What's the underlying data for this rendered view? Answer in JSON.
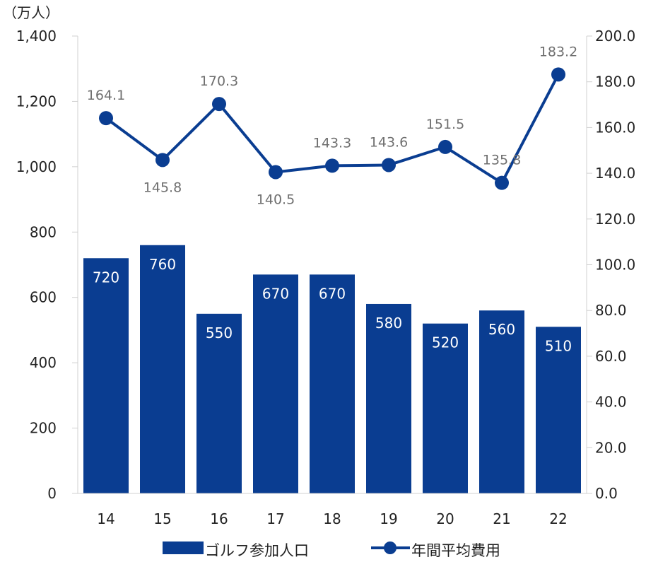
{
  "chart_data": {
    "type": "bar",
    "unit_label": "（万人）",
    "categories": [
      "14",
      "15",
      "16",
      "17",
      "18",
      "19",
      "20",
      "21",
      "22"
    ],
    "series": [
      {
        "name": "ゴルフ参加人口",
        "type": "bar",
        "axis": "left",
        "color": "#0a3d91",
        "values": [
          720,
          760,
          550,
          670,
          670,
          580,
          520,
          560,
          510
        ],
        "labels": [
          "720",
          "760",
          "550",
          "670",
          "670",
          "580",
          "520",
          "560",
          "510"
        ]
      },
      {
        "name": "年間平均費用",
        "type": "line",
        "axis": "right",
        "color": "#0a3d91",
        "values": [
          164.1,
          145.8,
          170.3,
          140.5,
          143.3,
          143.6,
          151.5,
          135.8,
          183.2
        ],
        "labels": [
          "164.1",
          "145.8",
          "170.3",
          "140.5",
          "143.3",
          "143.6",
          "151.5",
          "135.8",
          "183.2"
        ],
        "label_positions": [
          "above",
          "below",
          "above",
          "below",
          "above",
          "above",
          "above",
          "above",
          "above"
        ]
      }
    ],
    "y_left": {
      "min": 0,
      "max": 1400,
      "ticks": [
        0,
        200,
        400,
        600,
        800,
        1000,
        1200,
        1400
      ],
      "tick_labels": [
        "0",
        "200",
        "400",
        "600",
        "800",
        "1,000",
        "1,200",
        "1,400"
      ]
    },
    "y_right": {
      "min": 0,
      "max": 200,
      "ticks": [
        0,
        20,
        40,
        60,
        80,
        100,
        120,
        140,
        160,
        180,
        200
      ],
      "tick_labels": [
        "0.0",
        "20.0",
        "40.0",
        "60.0",
        "80.0",
        "100.0",
        "120.0",
        "140.0",
        "160.0",
        "180.0",
        "200.0"
      ]
    },
    "grid": false,
    "legend": {
      "position": "bottom"
    }
  }
}
